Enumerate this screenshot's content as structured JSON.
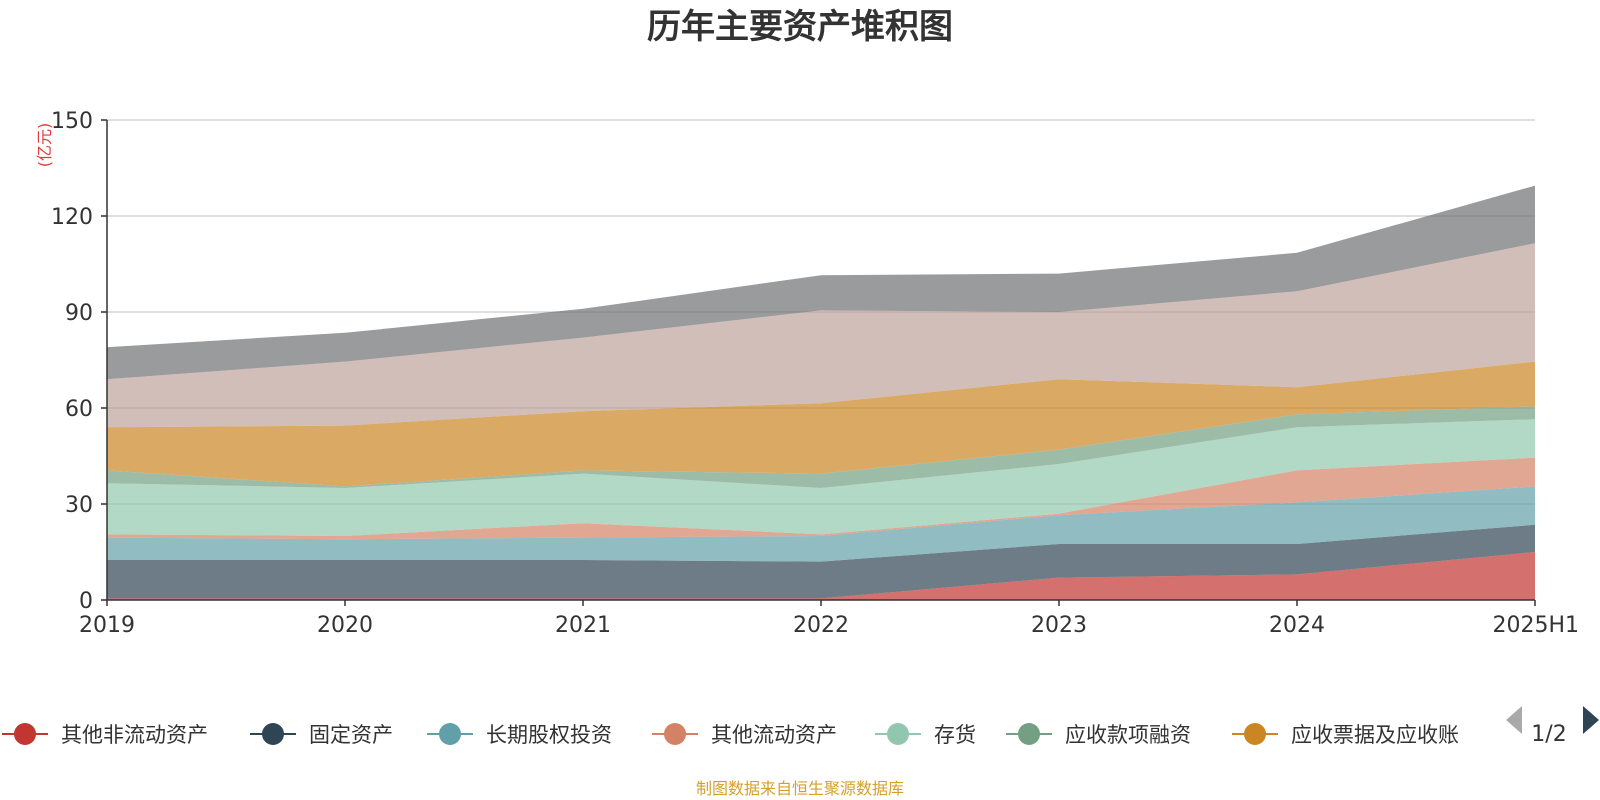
{
  "chart_data": {
    "type": "area",
    "stacked": true,
    "title": "历年主要资产堆积图",
    "unit_label": "(亿元)",
    "source_note": "制图数据来自恒生聚源数据库",
    "categories": [
      "2019",
      "2020",
      "2021",
      "2022",
      "2023",
      "2024",
      "2025H1"
    ],
    "ylim": [
      0,
      150
    ],
    "yticks": [
      0,
      30,
      60,
      90,
      120,
      150
    ],
    "grid": true,
    "legend_position": "bottom",
    "legend_page": "1/2",
    "series": [
      {
        "name": "其他非流动资产",
        "color": "#c23531",
        "values": [
          0.5,
          0.5,
          0.5,
          0.5,
          7,
          8,
          15
        ]
      },
      {
        "name": "固定资产",
        "color": "#2f4554",
        "values": [
          12,
          12,
          12,
          11.5,
          10.5,
          9.5,
          8.5
        ]
      },
      {
        "name": "长期股权投资",
        "color": "#61a0a8",
        "values": [
          7,
          6.5,
          7,
          8,
          9,
          13,
          12
        ]
      },
      {
        "name": "其他流动资产",
        "color": "#d48265",
        "values": [
          1,
          1,
          4.5,
          0.5,
          0.5,
          10,
          9
        ]
      },
      {
        "name": "存货",
        "color": "#91c7ae",
        "values": [
          16,
          15,
          15.5,
          14.5,
          15.5,
          13.5,
          12
        ]
      },
      {
        "name": "应收款项融资",
        "color": "#749f83",
        "values": [
          4,
          0.5,
          1,
          4.5,
          4.5,
          4,
          4
        ]
      },
      {
        "name": "应收票据及应收账",
        "color": "#ca8622",
        "values": [
          13.5,
          19,
          18.5,
          22,
          22,
          8.5,
          14
        ]
      },
      {
        "name": "",
        "color": "#bda29a",
        "values": [
          15,
          20,
          23,
          29,
          21,
          30,
          37
        ]
      },
      {
        "name": "",
        "color": "#6e7074",
        "values": [
          10,
          9,
          9,
          11,
          12,
          12,
          18
        ]
      }
    ]
  }
}
